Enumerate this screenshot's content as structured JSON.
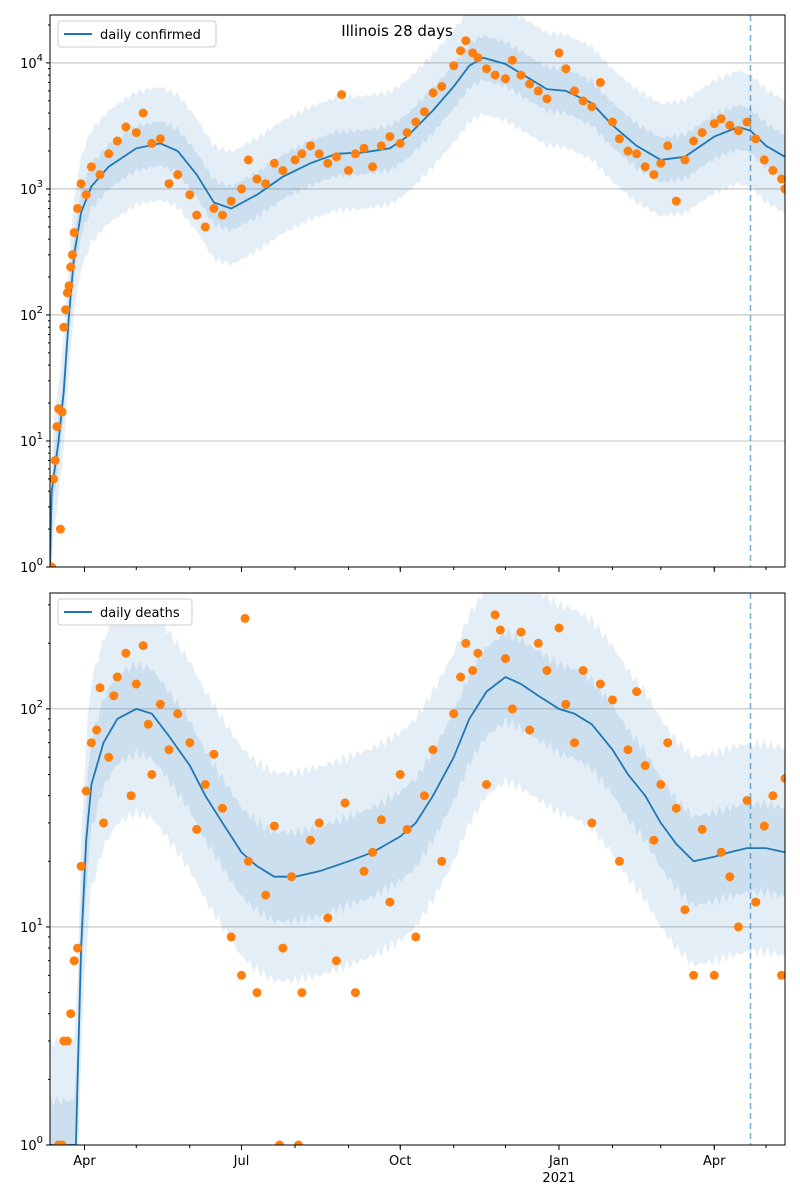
{
  "title": "Illinois 28 days",
  "colors": {
    "series": "#1f77b4",
    "observed": "#ff7f0e",
    "band": "#1f77b4",
    "grid": "#b0b0b0"
  },
  "x_axis": {
    "range": [
      "2020-03-12",
      "2021-05-12"
    ],
    "ticks": [
      {
        "date": "2020-04-01",
        "label": "Apr"
      },
      {
        "date": "2020-07-01",
        "label": "Jul"
      },
      {
        "date": "2020-10-01",
        "label": "Oct"
      },
      {
        "date": "2021-01-01",
        "label": "Jan",
        "sublabel": "2021"
      },
      {
        "date": "2021-04-01",
        "label": "Apr"
      }
    ],
    "vline_date": "2021-04-22"
  },
  "chart_data": [
    {
      "type": "line",
      "name": "daily confirmed",
      "legend": "daily confirmed",
      "legend_position": "top-left",
      "yscale": "log",
      "ylim": [
        1,
        24000
      ],
      "yticks": [
        {
          "value": 1,
          "base": "10",
          "exp": "0"
        },
        {
          "value": 10,
          "base": "10",
          "exp": "1"
        },
        {
          "value": 100,
          "base": "10",
          "exp": "2"
        },
        {
          "value": 1000,
          "base": "10",
          "exp": "3"
        },
        {
          "value": 10000,
          "base": "10",
          "exp": "4"
        }
      ],
      "grid": "horizontal",
      "fit_points": [
        [
          "2020-03-12",
          1
        ],
        [
          "2020-03-13",
          4
        ],
        [
          "2020-03-17",
          10
        ],
        [
          "2020-03-20",
          25
        ],
        [
          "2020-03-23",
          100
        ],
        [
          "2020-03-26",
          300
        ],
        [
          "2020-03-30",
          650
        ],
        [
          "2020-04-05",
          1050
        ],
        [
          "2020-04-15",
          1500
        ],
        [
          "2020-05-01",
          2100
        ],
        [
          "2020-05-15",
          2300
        ],
        [
          "2020-05-25",
          2000
        ],
        [
          "2020-06-05",
          1300
        ],
        [
          "2020-06-15",
          780
        ],
        [
          "2020-06-25",
          700
        ],
        [
          "2020-07-10",
          900
        ],
        [
          "2020-07-25",
          1250
        ],
        [
          "2020-08-10",
          1600
        ],
        [
          "2020-08-25",
          1900
        ],
        [
          "2020-09-10",
          1950
        ],
        [
          "2020-09-25",
          2100
        ],
        [
          "2020-10-05",
          2600
        ],
        [
          "2020-10-20",
          4200
        ],
        [
          "2020-11-01",
          6500
        ],
        [
          "2020-11-10",
          9500
        ],
        [
          "2020-11-18",
          11000
        ],
        [
          "2020-12-01",
          9800
        ],
        [
          "2020-12-15",
          7500
        ],
        [
          "2020-12-25",
          6200
        ],
        [
          "2021-01-05",
          6000
        ],
        [
          "2021-01-20",
          4800
        ],
        [
          "2021-02-01",
          3200
        ],
        [
          "2021-02-15",
          2200
        ],
        [
          "2021-03-01",
          1700
        ],
        [
          "2021-03-15",
          1800
        ],
        [
          "2021-04-01",
          2600
        ],
        [
          "2021-04-15",
          3100
        ],
        [
          "2021-04-22",
          2900
        ],
        [
          "2021-05-01",
          2200
        ],
        [
          "2021-05-12",
          1800
        ]
      ],
      "observed_points": [
        [
          "2020-03-12",
          1
        ],
        [
          "2020-03-13",
          1
        ],
        [
          "2020-03-14",
          5
        ],
        [
          "2020-03-15",
          7
        ],
        [
          "2020-03-16",
          13
        ],
        [
          "2020-03-17",
          18
        ],
        [
          "2020-03-18",
          2
        ],
        [
          "2020-03-19",
          17
        ],
        [
          "2020-03-20",
          80
        ],
        [
          "2020-03-21",
          110
        ],
        [
          "2020-03-22",
          150
        ],
        [
          "2020-03-23",
          170
        ],
        [
          "2020-03-24",
          240
        ],
        [
          "2020-03-25",
          300
        ],
        [
          "2020-03-26",
          450
        ],
        [
          "2020-03-28",
          700
        ],
        [
          "2020-03-30",
          1100
        ],
        [
          "2020-04-02",
          900
        ],
        [
          "2020-04-05",
          1500
        ],
        [
          "2020-04-10",
          1300
        ],
        [
          "2020-04-15",
          1900
        ],
        [
          "2020-04-20",
          2400
        ],
        [
          "2020-04-25",
          3100
        ],
        [
          "2020-05-01",
          2800
        ],
        [
          "2020-05-05",
          4000
        ],
        [
          "2020-05-10",
          2300
        ],
        [
          "2020-05-15",
          2500
        ],
        [
          "2020-05-20",
          1100
        ],
        [
          "2020-05-25",
          1300
        ],
        [
          "2020-06-01",
          900
        ],
        [
          "2020-06-05",
          620
        ],
        [
          "2020-06-10",
          500
        ],
        [
          "2020-06-15",
          700
        ],
        [
          "2020-06-20",
          620
        ],
        [
          "2020-06-25",
          800
        ],
        [
          "2020-07-01",
          1000
        ],
        [
          "2020-07-05",
          1700
        ],
        [
          "2020-07-10",
          1200
        ],
        [
          "2020-07-15",
          1100
        ],
        [
          "2020-07-20",
          1600
        ],
        [
          "2020-07-25",
          1400
        ],
        [
          "2020-08-01",
          1700
        ],
        [
          "2020-08-05",
          1900
        ],
        [
          "2020-08-10",
          2200
        ],
        [
          "2020-08-15",
          1900
        ],
        [
          "2020-08-20",
          1600
        ],
        [
          "2020-08-25",
          1800
        ],
        [
          "2020-08-28",
          5600
        ],
        [
          "2020-09-01",
          1400
        ],
        [
          "2020-09-05",
          1900
        ],
        [
          "2020-09-10",
          2100
        ],
        [
          "2020-09-15",
          1500
        ],
        [
          "2020-09-20",
          2200
        ],
        [
          "2020-09-25",
          2600
        ],
        [
          "2020-10-01",
          2300
        ],
        [
          "2020-10-05",
          2800
        ],
        [
          "2020-10-10",
          3400
        ],
        [
          "2020-10-15",
          4100
        ],
        [
          "2020-10-20",
          5800
        ],
        [
          "2020-10-25",
          6500
        ],
        [
          "2020-11-01",
          9500
        ],
        [
          "2020-11-05",
          12500
        ],
        [
          "2020-11-08",
          15000
        ],
        [
          "2020-11-12",
          12000
        ],
        [
          "2020-11-15",
          11000
        ],
        [
          "2020-11-20",
          9000
        ],
        [
          "2020-11-25",
          8000
        ],
        [
          "2020-12-01",
          7500
        ],
        [
          "2020-12-05",
          10500
        ],
        [
          "2020-12-10",
          8000
        ],
        [
          "2020-12-15",
          6800
        ],
        [
          "2020-12-20",
          6000
        ],
        [
          "2020-12-25",
          5200
        ],
        [
          "2021-01-01",
          12000
        ],
        [
          "2021-01-05",
          9000
        ],
        [
          "2021-01-10",
          6000
        ],
        [
          "2021-01-15",
          5000
        ],
        [
          "2021-01-20",
          4500
        ],
        [
          "2021-01-25",
          7000
        ],
        [
          "2021-02-01",
          3400
        ],
        [
          "2021-02-05",
          2500
        ],
        [
          "2021-02-10",
          2000
        ],
        [
          "2021-02-15",
          1900
        ],
        [
          "2021-02-20",
          1500
        ],
        [
          "2021-02-25",
          1300
        ],
        [
          "2021-03-01",
          1600
        ],
        [
          "2021-03-05",
          2200
        ],
        [
          "2021-03-10",
          800
        ],
        [
          "2021-03-15",
          1700
        ],
        [
          "2021-03-20",
          2400
        ],
        [
          "2021-03-25",
          2800
        ],
        [
          "2021-04-01",
          3300
        ],
        [
          "2021-04-05",
          3600
        ],
        [
          "2021-04-10",
          3200
        ],
        [
          "2021-04-15",
          2900
        ],
        [
          "2021-04-20",
          3400
        ],
        [
          "2021-04-25",
          2500
        ],
        [
          "2021-04-30",
          1700
        ],
        [
          "2021-05-05",
          1400
        ],
        [
          "2021-05-10",
          1200
        ],
        [
          "2021-05-12",
          1000
        ]
      ]
    },
    {
      "type": "line",
      "name": "daily deaths",
      "legend": "daily deaths",
      "legend_position": "top-left",
      "yscale": "log",
      "ylim": [
        1,
        340
      ],
      "yticks": [
        {
          "value": 1,
          "base": "10",
          "exp": "0"
        },
        {
          "value": 10,
          "base": "10",
          "exp": "1"
        },
        {
          "value": 100,
          "base": "10",
          "exp": "2"
        }
      ],
      "grid": "horizontal",
      "fit_points": [
        [
          "2020-03-12",
          1
        ],
        [
          "2020-03-27",
          1
        ],
        [
          "2020-03-28",
          2
        ],
        [
          "2020-03-30",
          8
        ],
        [
          "2020-04-02",
          25
        ],
        [
          "2020-04-05",
          45
        ],
        [
          "2020-04-12",
          70
        ],
        [
          "2020-04-20",
          90
        ],
        [
          "2020-05-01",
          100
        ],
        [
          "2020-05-10",
          95
        ],
        [
          "2020-05-20",
          75
        ],
        [
          "2020-06-01",
          55
        ],
        [
          "2020-06-10",
          40
        ],
        [
          "2020-06-20",
          30
        ],
        [
          "2020-07-01",
          22
        ],
        [
          "2020-07-10",
          19
        ],
        [
          "2020-07-20",
          17
        ],
        [
          "2020-08-01",
          17
        ],
        [
          "2020-08-15",
          18
        ],
        [
          "2020-09-01",
          20
        ],
        [
          "2020-09-15",
          22
        ],
        [
          "2020-10-01",
          26
        ],
        [
          "2020-10-10",
          30
        ],
        [
          "2020-10-20",
          40
        ],
        [
          "2020-11-01",
          60
        ],
        [
          "2020-11-10",
          90
        ],
        [
          "2020-11-20",
          120
        ],
        [
          "2020-12-01",
          140
        ],
        [
          "2020-12-10",
          130
        ],
        [
          "2020-12-20",
          115
        ],
        [
          "2021-01-01",
          100
        ],
        [
          "2021-01-10",
          95
        ],
        [
          "2021-01-20",
          85
        ],
        [
          "2021-02-01",
          65
        ],
        [
          "2021-02-10",
          50
        ],
        [
          "2021-02-20",
          40
        ],
        [
          "2021-03-01",
          30
        ],
        [
          "2021-03-10",
          24
        ],
        [
          "2021-03-20",
          20
        ],
        [
          "2021-04-01",
          21
        ],
        [
          "2021-04-10",
          22
        ],
        [
          "2021-04-20",
          23
        ],
        [
          "2021-05-01",
          23
        ],
        [
          "2021-05-12",
          22
        ]
      ],
      "observed_points": [
        [
          "2020-03-17",
          1
        ],
        [
          "2020-03-19",
          1
        ],
        [
          "2020-03-20",
          3
        ],
        [
          "2020-03-22",
          3
        ],
        [
          "2020-03-24",
          4
        ],
        [
          "2020-03-26",
          7
        ],
        [
          "2020-03-28",
          8
        ],
        [
          "2020-03-30",
          19
        ],
        [
          "2020-04-02",
          42
        ],
        [
          "2020-04-05",
          70
        ],
        [
          "2020-04-08",
          80
        ],
        [
          "2020-04-10",
          125
        ],
        [
          "2020-04-12",
          30
        ],
        [
          "2020-04-15",
          60
        ],
        [
          "2020-04-18",
          115
        ],
        [
          "2020-04-20",
          140
        ],
        [
          "2020-04-25",
          180
        ],
        [
          "2020-04-28",
          40
        ],
        [
          "2020-05-01",
          130
        ],
        [
          "2020-05-05",
          195
        ],
        [
          "2020-05-08",
          85
        ],
        [
          "2020-05-10",
          50
        ],
        [
          "2020-05-15",
          105
        ],
        [
          "2020-05-20",
          65
        ],
        [
          "2020-05-25",
          95
        ],
        [
          "2020-06-01",
          70
        ],
        [
          "2020-06-05",
          28
        ],
        [
          "2020-06-10",
          45
        ],
        [
          "2020-06-15",
          62
        ],
        [
          "2020-06-20",
          35
        ],
        [
          "2020-06-25",
          9
        ],
        [
          "2020-07-01",
          6
        ],
        [
          "2020-07-03",
          260
        ],
        [
          "2020-07-05",
          20
        ],
        [
          "2020-07-10",
          5
        ],
        [
          "2020-07-15",
          14
        ],
        [
          "2020-07-20",
          29
        ],
        [
          "2020-07-23",
          1
        ],
        [
          "2020-07-25",
          8
        ],
        [
          "2020-07-30",
          17
        ],
        [
          "2020-08-03",
          1
        ],
        [
          "2020-08-05",
          5
        ],
        [
          "2020-08-10",
          25
        ],
        [
          "2020-08-15",
          30
        ],
        [
          "2020-08-20",
          11
        ],
        [
          "2020-08-25",
          7
        ],
        [
          "2020-08-30",
          37
        ],
        [
          "2020-09-05",
          5
        ],
        [
          "2020-09-10",
          18
        ],
        [
          "2020-09-15",
          22
        ],
        [
          "2020-09-20",
          31
        ],
        [
          "2020-09-25",
          13
        ],
        [
          "2020-10-01",
          50
        ],
        [
          "2020-10-05",
          28
        ],
        [
          "2020-10-10",
          9
        ],
        [
          "2020-10-15",
          40
        ],
        [
          "2020-10-20",
          65
        ],
        [
          "2020-10-25",
          20
        ],
        [
          "2020-11-01",
          95
        ],
        [
          "2020-11-05",
          140
        ],
        [
          "2020-11-08",
          200
        ],
        [
          "2020-11-12",
          150
        ],
        [
          "2020-11-15",
          180
        ],
        [
          "2020-11-20",
          45
        ],
        [
          "2020-11-25",
          270
        ],
        [
          "2020-11-28",
          230
        ],
        [
          "2020-12-01",
          170
        ],
        [
          "2020-12-05",
          100
        ],
        [
          "2020-12-10",
          225
        ],
        [
          "2020-12-15",
          80
        ],
        [
          "2020-12-20",
          200
        ],
        [
          "2020-12-25",
          150
        ],
        [
          "2021-01-01",
          235
        ],
        [
          "2021-01-05",
          105
        ],
        [
          "2021-01-10",
          70
        ],
        [
          "2021-01-15",
          150
        ],
        [
          "2021-01-20",
          30
        ],
        [
          "2021-01-25",
          130
        ],
        [
          "2021-02-01",
          110
        ],
        [
          "2021-02-05",
          20
        ],
        [
          "2021-02-10",
          65
        ],
        [
          "2021-02-15",
          120
        ],
        [
          "2021-02-20",
          55
        ],
        [
          "2021-02-25",
          25
        ],
        [
          "2021-03-01",
          45
        ],
        [
          "2021-03-05",
          70
        ],
        [
          "2021-03-10",
          35
        ],
        [
          "2021-03-15",
          12
        ],
        [
          "2021-03-20",
          6
        ],
        [
          "2021-03-25",
          28
        ],
        [
          "2021-04-01",
          6
        ],
        [
          "2021-04-05",
          22
        ],
        [
          "2021-04-10",
          17
        ],
        [
          "2021-04-15",
          10
        ],
        [
          "2021-04-20",
          38
        ],
        [
          "2021-04-25",
          13
        ],
        [
          "2021-04-30",
          29
        ],
        [
          "2021-05-05",
          40
        ],
        [
          "2021-05-10",
          6
        ],
        [
          "2021-05-12",
          48
        ]
      ]
    }
  ]
}
